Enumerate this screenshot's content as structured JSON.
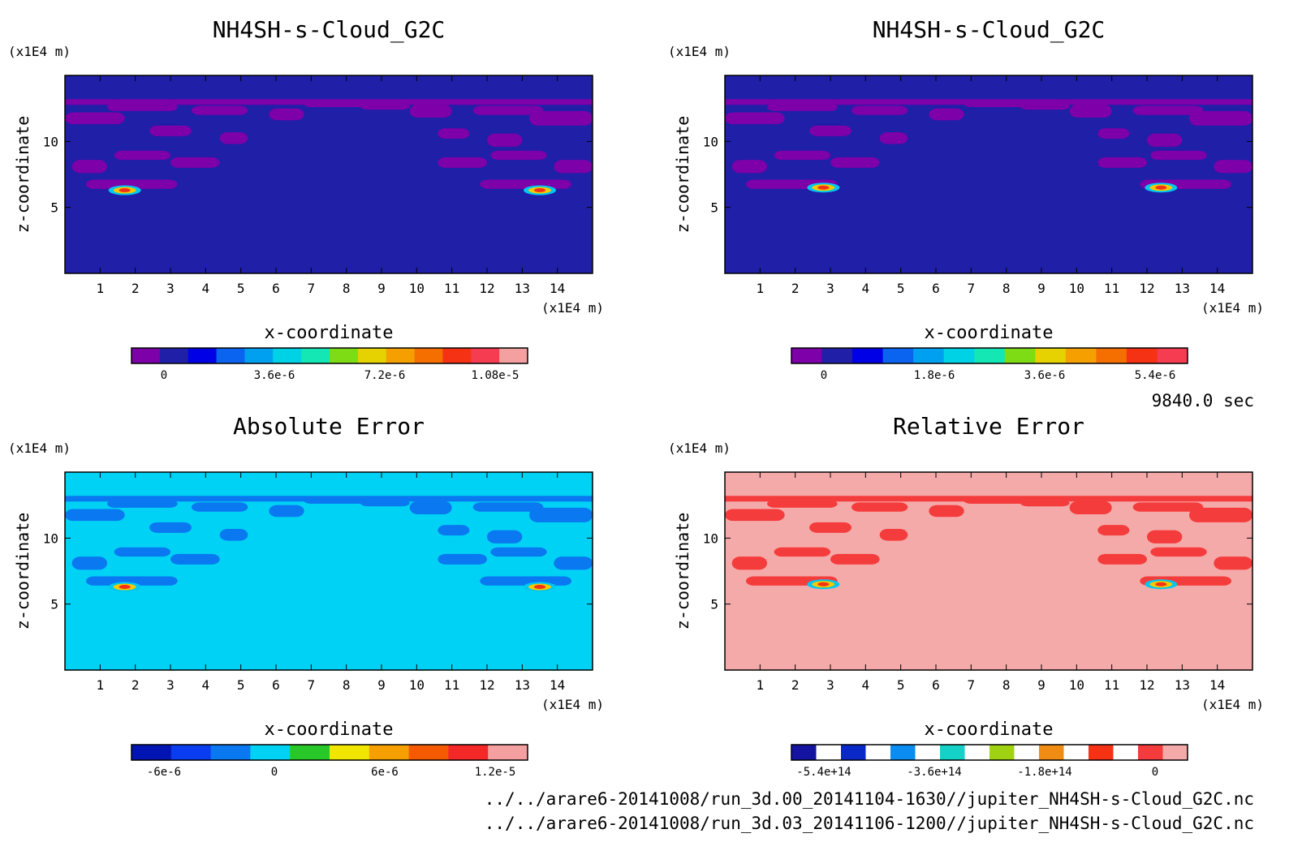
{
  "time_label": "9840.0 sec",
  "files": [
    "../../arare6-20141008/run_3d.00_20141104-1630//jupiter_NH4SH-s-Cloud_G2C.nc",
    "../../arare6-20141008/run_3d.03_20141106-1200//jupiter_NH4SH-s-Cloud_G2C.nc"
  ],
  "chart_data": [
    {
      "type": "heatmap",
      "title": "NH4SH-s-Cloud_G2C",
      "xlabel": "x-coordinate",
      "ylabel": "z-coordinate",
      "x_unit": "(x1E4 m)",
      "y_unit": "(x1E4 m)",
      "xlim": [
        0,
        15
      ],
      "ylim": [
        0,
        15
      ],
      "xticks": [
        1,
        2,
        3,
        4,
        5,
        6,
        7,
        8,
        9,
        10,
        11,
        12,
        13,
        14
      ],
      "yticks": [
        5,
        10
      ],
      "background": "#1f1fa8",
      "colorbar": {
        "colors": [
          "#7d00a8",
          "#1f1fa8",
          "#0000e6",
          "#0a64f0",
          "#00a0f0",
          "#00d2e6",
          "#14e6b4",
          "#7ddc14",
          "#e6d200",
          "#f5a000",
          "#f56e00",
          "#f53214",
          "#f53c50",
          "#f5a0a0"
        ],
        "tick_labels": [
          "0",
          "3.6e-6",
          "7.2e-6",
          "1.08e-5"
        ]
      },
      "features": [
        {
          "name": "cloud-layer",
          "x": [
            0,
            15
          ],
          "z": [
            6.2,
            13.2
          ],
          "color": "#7d00a8"
        },
        {
          "name": "hotspot",
          "x": 1.7,
          "z": 6.3,
          "color": "#f5c800"
        },
        {
          "name": "hotspot",
          "x": 13.5,
          "z": 6.3,
          "color": "#f5c800"
        }
      ]
    },
    {
      "type": "heatmap",
      "title": "NH4SH-s-Cloud_G2C",
      "xlabel": "x-coordinate",
      "ylabel": "z-coordinate",
      "x_unit": "(x1E4 m)",
      "y_unit": "(x1E4 m)",
      "xlim": [
        0,
        15
      ],
      "ylim": [
        0,
        15
      ],
      "xticks": [
        1,
        2,
        3,
        4,
        5,
        6,
        7,
        8,
        9,
        10,
        11,
        12,
        13,
        14
      ],
      "yticks": [
        5,
        10
      ],
      "background": "#1f1fa8",
      "colorbar": {
        "colors": [
          "#7d00a8",
          "#1f1fa8",
          "#0000e6",
          "#0a64f0",
          "#00a0f0",
          "#00d2e6",
          "#14e6b4",
          "#7ddc14",
          "#e6d200",
          "#f5a000",
          "#f56e00",
          "#f53214",
          "#f53c50"
        ],
        "tick_labels": [
          "0",
          "1.8e-6",
          "3.6e-6",
          "5.4e-6"
        ]
      },
      "features": [
        {
          "name": "cloud-layer",
          "x": [
            0,
            15
          ],
          "z": [
            6.2,
            13.2
          ],
          "color": "#7d00a8"
        },
        {
          "name": "hotspot",
          "x": 2.8,
          "z": 6.5,
          "color": "#f5c800"
        },
        {
          "name": "hotspot",
          "x": 12.4,
          "z": 6.5,
          "color": "#f5c800"
        }
      ]
    },
    {
      "type": "heatmap",
      "title": "Absolute Error",
      "xlabel": "x-coordinate",
      "ylabel": "z-coordinate",
      "x_unit": "(x1E4 m)",
      "y_unit": "(x1E4 m)",
      "xlim": [
        0,
        15
      ],
      "ylim": [
        0,
        15
      ],
      "xticks": [
        1,
        2,
        3,
        4,
        5,
        6,
        7,
        8,
        9,
        10,
        11,
        12,
        13,
        14
      ],
      "yticks": [
        5,
        10
      ],
      "background": "#00d2f5",
      "colorbar": {
        "colors": [
          "#0014b4",
          "#0a3cf0",
          "#0a78f0",
          "#00d2f5",
          "#28c828",
          "#f0e600",
          "#f5a000",
          "#f55a00",
          "#f52828",
          "#f5a0a0"
        ],
        "tick_labels": [
          "-6e-6",
          "0",
          "6e-6",
          "1.2e-5"
        ]
      },
      "features": [
        {
          "name": "cloud-layer",
          "x": [
            0,
            15
          ],
          "z": [
            6.2,
            13.2
          ],
          "color": "#0a78f0"
        },
        {
          "name": "hotspot",
          "x": 1.7,
          "z": 6.3,
          "color": "#f5c800"
        },
        {
          "name": "hotspot",
          "x": 13.5,
          "z": 6.3,
          "color": "#f5c800"
        }
      ]
    },
    {
      "type": "heatmap",
      "title": "Relative Error",
      "xlabel": "x-coordinate",
      "ylabel": "z-coordinate",
      "x_unit": "(x1E4 m)",
      "y_unit": "(x1E4 m)",
      "xlim": [
        0,
        15
      ],
      "ylim": [
        0,
        15
      ],
      "xticks": [
        1,
        2,
        3,
        4,
        5,
        6,
        7,
        8,
        9,
        10,
        11,
        12,
        13,
        14
      ],
      "yticks": [
        5,
        10
      ],
      "background": "#f5aaaa",
      "colorbar": {
        "colors": [
          "#1414a0",
          "#ffffff",
          "#0a28c8",
          "#ffffff",
          "#0a8cf0",
          "#ffffff",
          "#14d2c8",
          "#ffffff",
          "#a0d214",
          "#ffffff",
          "#f08c14",
          "#ffffff",
          "#f53214",
          "#ffffff",
          "#f53c3c",
          "#f5aaaa"
        ],
        "tick_labels": [
          "-5.4e+14",
          "-3.6e+14",
          "-1.8e+14",
          "0"
        ]
      },
      "features": [
        {
          "name": "cloud-layer",
          "x": [
            0,
            15
          ],
          "z": [
            6.2,
            13.2
          ],
          "color": "#f53c3c"
        },
        {
          "name": "hotspot",
          "x": 2.8,
          "z": 6.5,
          "color": "#f5c800"
        },
        {
          "name": "hotspot",
          "x": 12.4,
          "z": 6.5,
          "color": "#f5c800"
        }
      ]
    }
  ]
}
